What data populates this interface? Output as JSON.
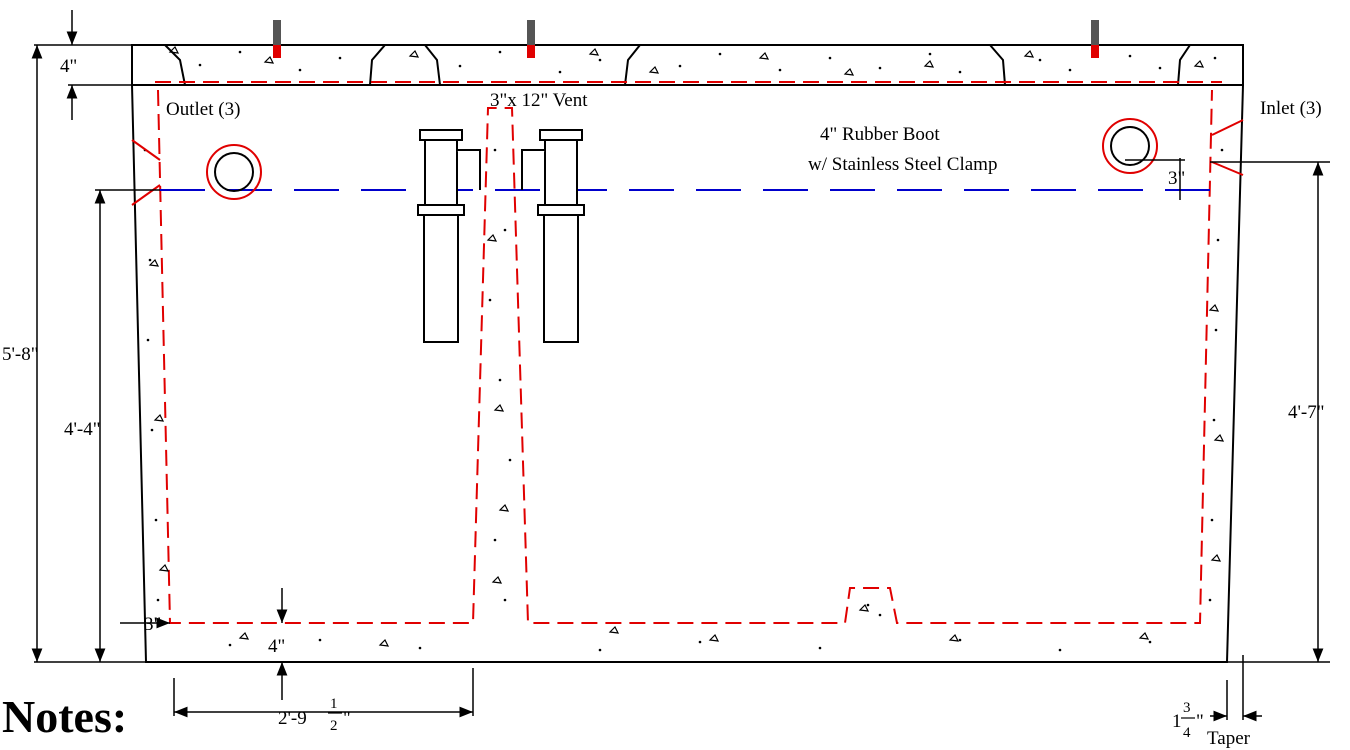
{
  "drawing": {
    "labels": {
      "outlet": "Outlet (3)",
      "inlet": "Inlet (3)",
      "vent": "3\"x 12\" Vent",
      "boot_line1": "4\" Rubber Boot",
      "boot_line2": "w/ Stainless Steel Clamp",
      "notes": "Notes:",
      "taper": "Taper"
    },
    "dimensions": {
      "lid_thickness": "4\"",
      "overall_height": "5'-8\"",
      "outlet_height": "4'-4\"",
      "inlet_height": "4'-7\"",
      "inlet_drop": "3\"",
      "wall_thickness": "3\"",
      "floor_thickness": "4\"",
      "compartment_width": "2'-9",
      "compartment_width_frac_num": "1",
      "compartment_width_frac_den": "2",
      "compartment_width_suffix": "\"",
      "taper_whole": "1",
      "taper_frac_num": "3",
      "taper_frac_den": "4",
      "taper_suffix": "\""
    }
  },
  "colors": {
    "rebar": "#e00000",
    "water_line": "#0000cc",
    "concrete_outline": "#000000",
    "lifting_hook": "#555555"
  }
}
